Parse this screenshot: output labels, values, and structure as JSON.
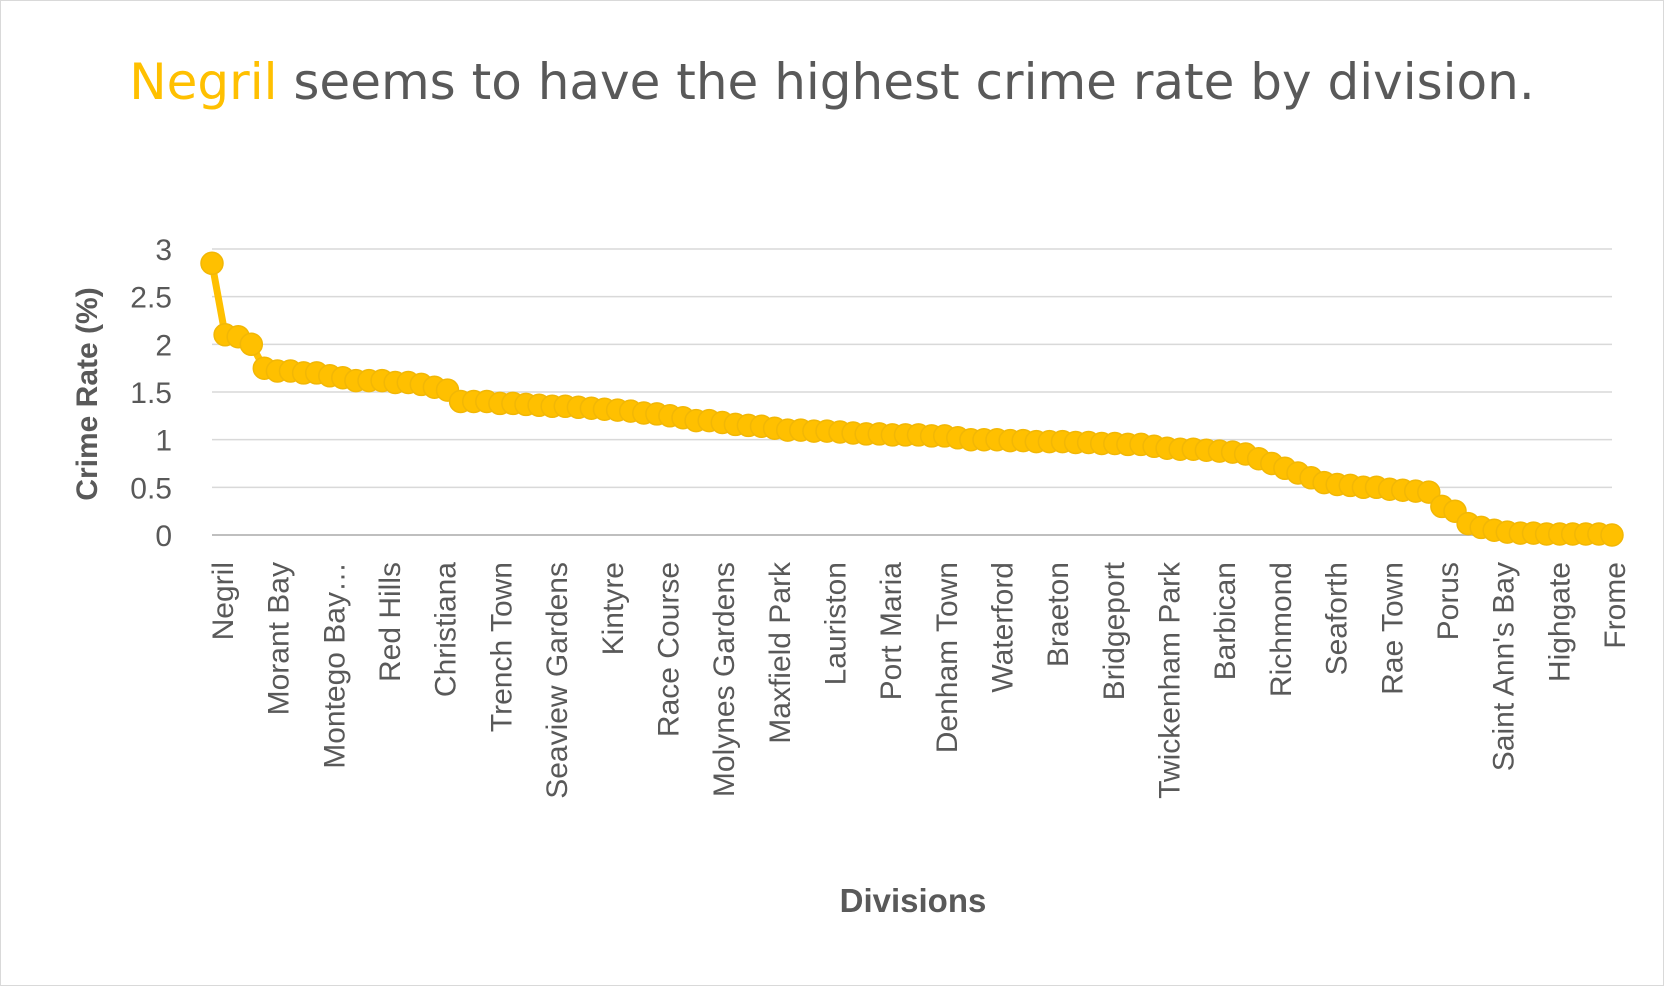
{
  "chart_data": {
    "type": "line",
    "title_highlight": "Negril",
    "title_rest": " seems to have the highest crime rate by division.",
    "xlabel": "Divisions",
    "ylabel": "Crime Rate (%)",
    "ylim": [
      0,
      3
    ],
    "yticks": [
      "0",
      "0.5",
      "1",
      "1.5",
      "2",
      "2.5",
      "3"
    ],
    "grid": true,
    "legend": "none",
    "series_color": "#ffc000",
    "tick_labels": [
      "Negril",
      "Morant Bay",
      "Montego Bay…",
      "Red Hills",
      "Christiana",
      "Trench Town",
      "Seaview Gardens",
      "Kintyre",
      "Race Course",
      "Molynes Gardens",
      "Maxfield Park",
      "Lauriston",
      "Port Maria",
      "Denham Town",
      "Waterford",
      "Braeton",
      "Bridgeport",
      "Twickenham Park",
      "Barbican",
      "Richmond",
      "Seaforth",
      "Rae Town",
      "Porus",
      "Saint Ann's Bay",
      "Highgate",
      "Frome"
    ],
    "values": [
      2.85,
      2.1,
      2.08,
      2.0,
      1.75,
      1.72,
      1.72,
      1.7,
      1.7,
      1.67,
      1.65,
      1.62,
      1.62,
      1.62,
      1.6,
      1.6,
      1.58,
      1.55,
      1.52,
      1.4,
      1.4,
      1.4,
      1.38,
      1.38,
      1.37,
      1.36,
      1.35,
      1.35,
      1.34,
      1.33,
      1.32,
      1.31,
      1.3,
      1.28,
      1.27,
      1.25,
      1.23,
      1.2,
      1.2,
      1.18,
      1.16,
      1.15,
      1.14,
      1.12,
      1.1,
      1.1,
      1.09,
      1.09,
      1.08,
      1.07,
      1.06,
      1.06,
      1.05,
      1.05,
      1.05,
      1.04,
      1.04,
      1.02,
      1.0,
      1.0,
      1.0,
      0.99,
      0.99,
      0.98,
      0.98,
      0.98,
      0.97,
      0.97,
      0.96,
      0.96,
      0.95,
      0.95,
      0.93,
      0.91,
      0.9,
      0.9,
      0.89,
      0.88,
      0.87,
      0.85,
      0.8,
      0.75,
      0.7,
      0.65,
      0.6,
      0.55,
      0.53,
      0.52,
      0.5,
      0.5,
      0.48,
      0.47,
      0.46,
      0.45,
      0.3,
      0.25,
      0.12,
      0.08,
      0.05,
      0.03,
      0.02,
      0.02,
      0.01,
      0.01,
      0.01,
      0.01,
      0.01,
      0.0
    ]
  }
}
